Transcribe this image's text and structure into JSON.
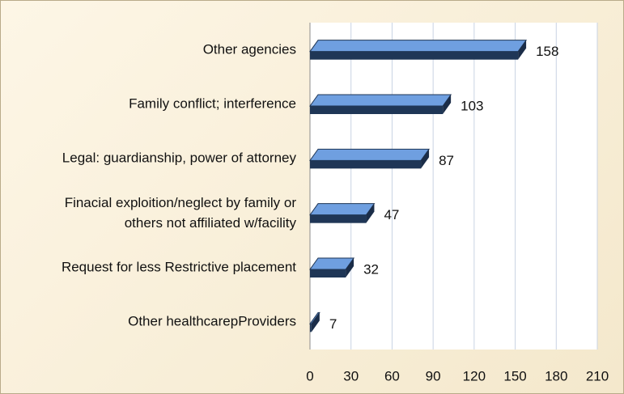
{
  "chart_data": {
    "type": "bar",
    "orientation": "horizontal",
    "categories": [
      "Other agencies",
      "Family conflict; interference",
      "Legal: guardianship, power of attorney",
      "Finacial exploition/neglect by family or\nothers not affiliated w/facility",
      "Request for less Restrictive placement",
      "Other healthcarepProviders"
    ],
    "values": [
      158,
      103,
      87,
      47,
      32,
      7
    ],
    "color": "#6f9fe0",
    "xlim": [
      0,
      210
    ],
    "xticks": [
      0,
      30,
      60,
      90,
      120,
      150,
      180,
      210
    ],
    "grid": true
  }
}
